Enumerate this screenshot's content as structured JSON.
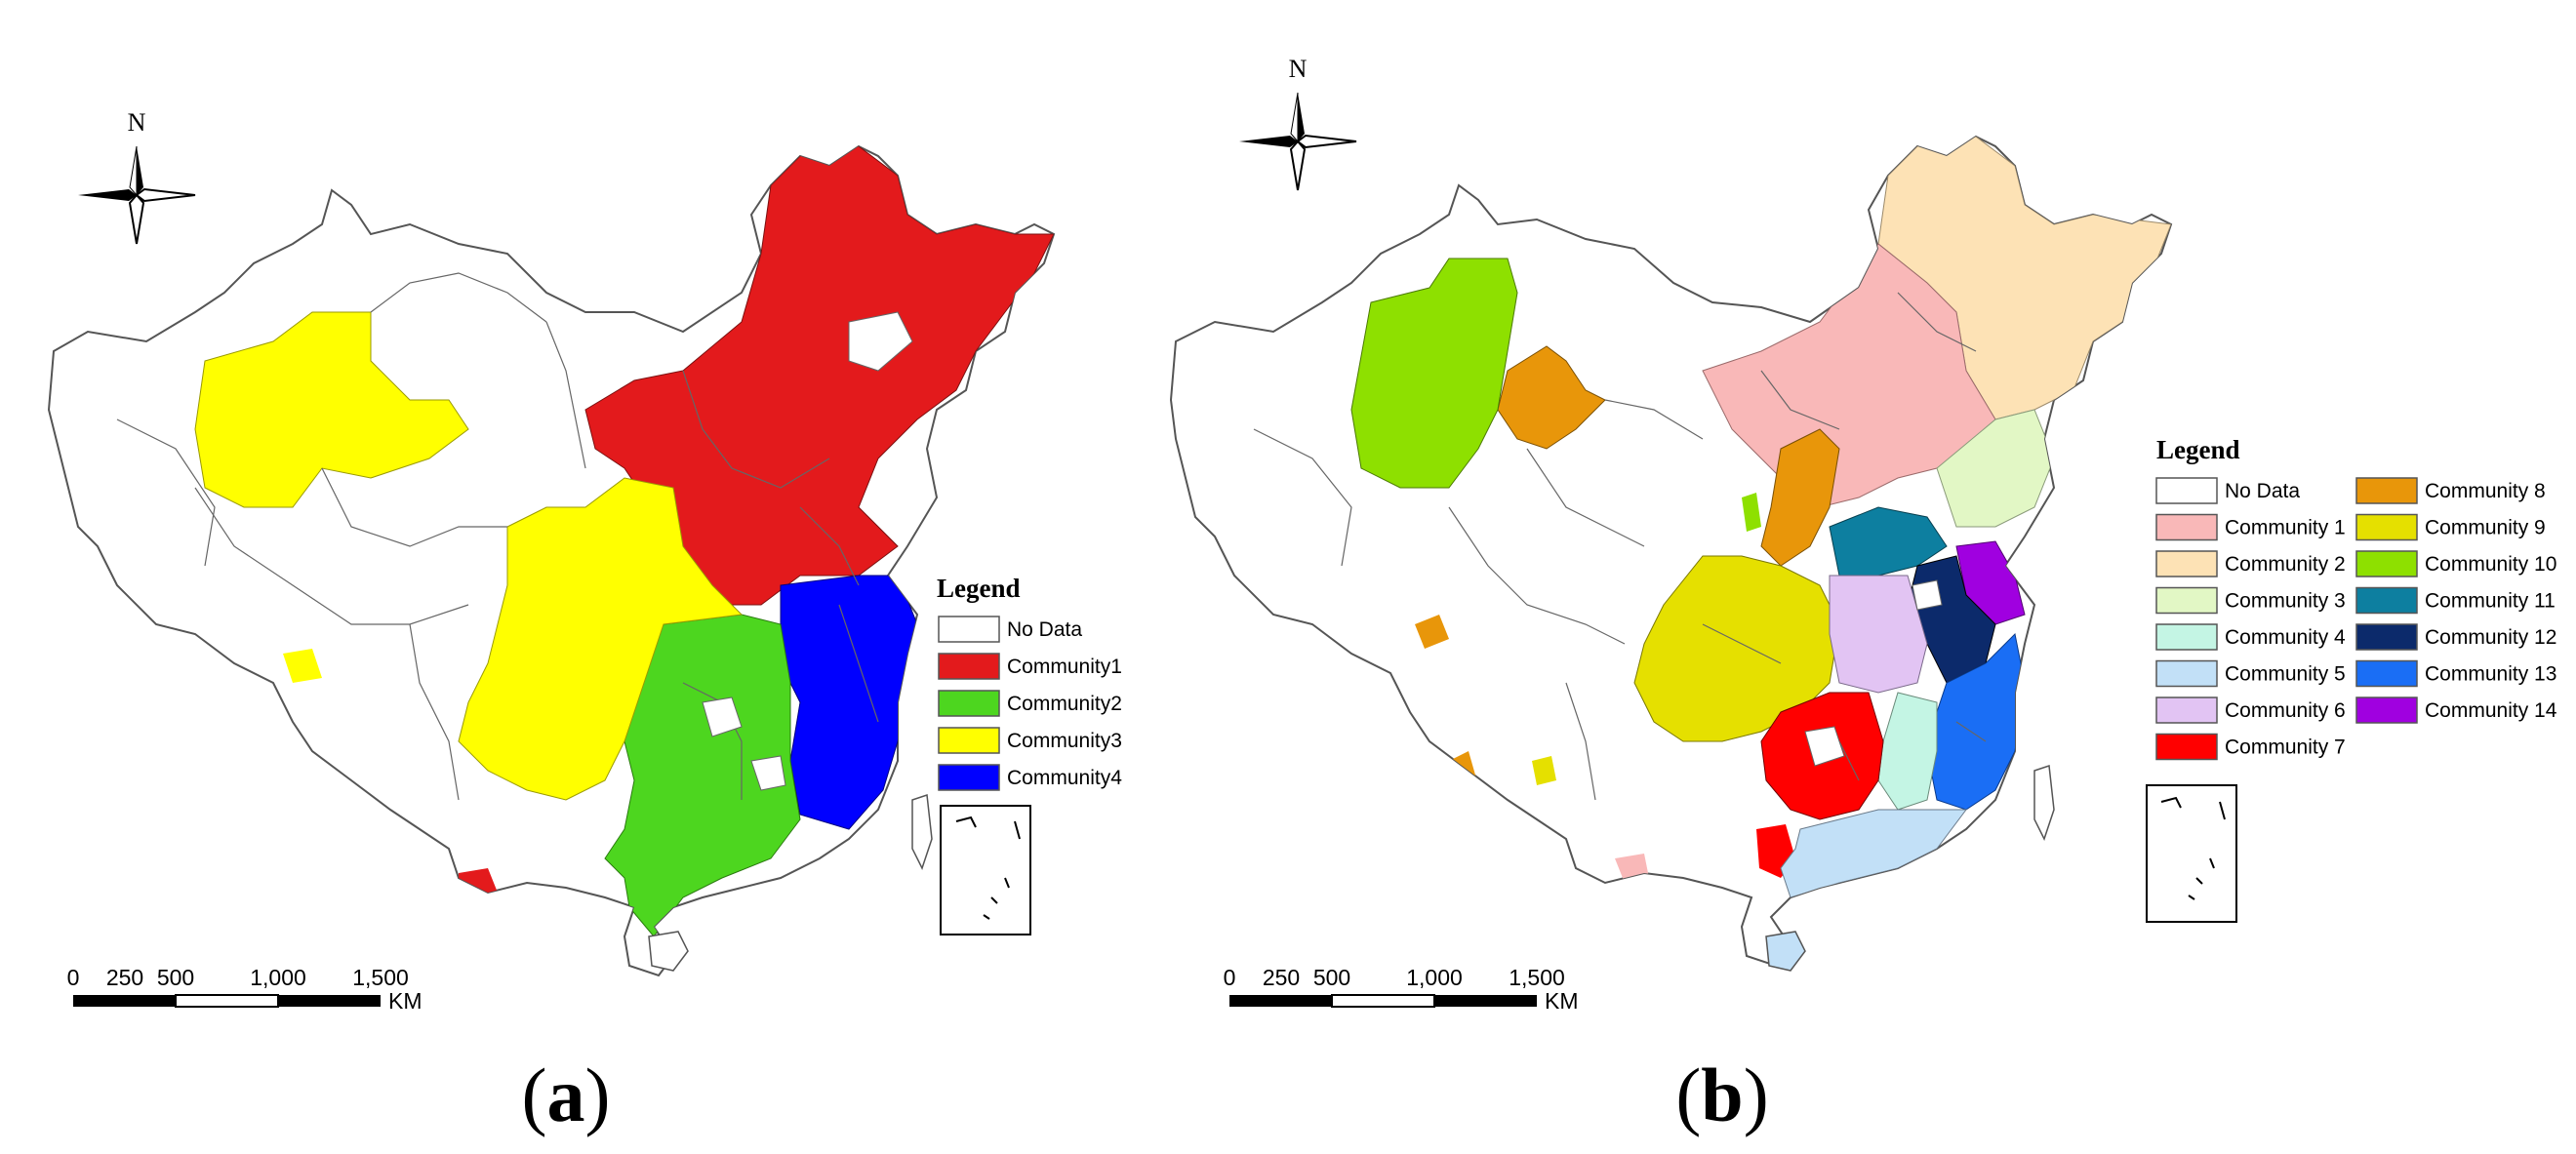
{
  "panels": [
    {
      "id": "a",
      "caption": "a",
      "north_label": "N",
      "legend": {
        "title": "Legend",
        "items": [
          {
            "label": "No Data",
            "color": "#ffffff"
          },
          {
            "label": "Community1",
            "color": "#e31a1c"
          },
          {
            "label": "Community2",
            "color": "#4dd61f"
          },
          {
            "label": "Community3",
            "color": "#ffff00"
          },
          {
            "label": "Community4",
            "color": "#0000ff"
          }
        ]
      },
      "scale_bar": {
        "ticks": [
          "0",
          "250",
          "500",
          "1,000",
          "1,500"
        ],
        "unit": "KM"
      }
    },
    {
      "id": "b",
      "caption": "b",
      "north_label": "N",
      "legend": {
        "title": "Legend",
        "items": [
          {
            "label": "No Data",
            "color": "#ffffff"
          },
          {
            "label": "Community 1",
            "color": "#f9b8b8"
          },
          {
            "label": "Community 2",
            "color": "#fde2b5"
          },
          {
            "label": "Community 3",
            "color": "#e2f7c5"
          },
          {
            "label": "Community 4",
            "color": "#c4f5e4"
          },
          {
            "label": "Community 5",
            "color": "#c2e0f7"
          },
          {
            "label": "Community 6",
            "color": "#e2c4f3"
          },
          {
            "label": "Community 7",
            "color": "#ff0000"
          },
          {
            "label": "Community 8",
            "color": "#e8960a"
          },
          {
            "label": "Community 9",
            "color": "#e5e000"
          },
          {
            "label": "Community 10",
            "color": "#8ee000"
          },
          {
            "label": "Community 11",
            "color": "#0d7fa0"
          },
          {
            "label": "Community 12",
            "color": "#0c2a6b"
          },
          {
            "label": "Community 13",
            "color": "#1a6ef5"
          },
          {
            "label": "Community 14",
            "color": "#a000e0"
          }
        ]
      },
      "scale_bar": {
        "ticks": [
          "0",
          "250",
          "500",
          "1,000",
          "1,500"
        ],
        "unit": "KM"
      }
    }
  ]
}
